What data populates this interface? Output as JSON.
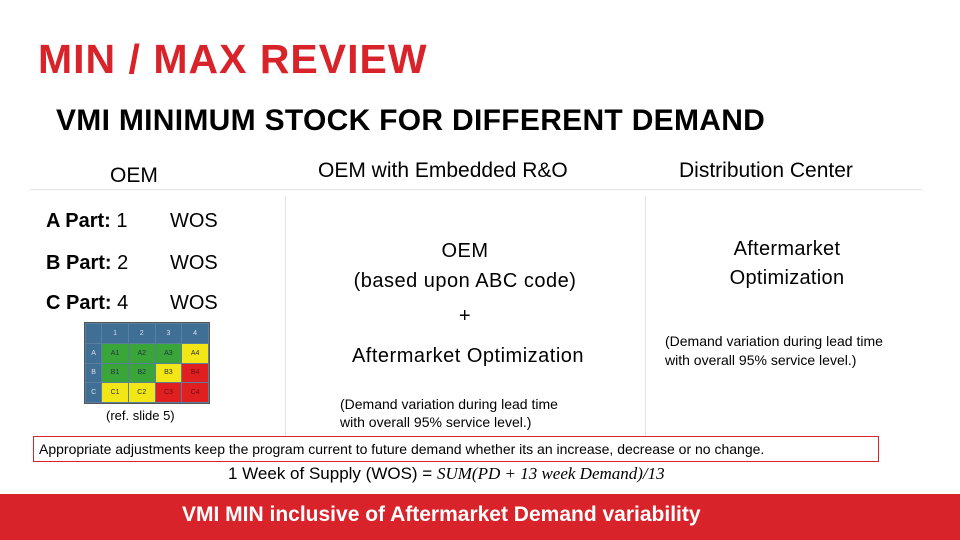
{
  "title": "MIN / MAX REVIEW",
  "subtitle": "VMI MINIMUM STOCK FOR DIFFERENT DEMAND",
  "columns": {
    "oem": "OEM",
    "oem_embedded": "OEM with Embedded R&O",
    "distribution": "Distribution Center"
  },
  "oem_parts": [
    {
      "label": "A Part:",
      "value": "1",
      "unit": "WOS"
    },
    {
      "label": "B Part:",
      "value": "2",
      "unit": "WOS"
    },
    {
      "label": "C Part:",
      "value": "4",
      "unit": "WOS"
    }
  ],
  "abc_grid": {
    "col_headers": [
      "1",
      "2",
      "3",
      "4"
    ],
    "rows": [
      {
        "head": "A",
        "cells": [
          "A1",
          "A2",
          "A3",
          "A4"
        ]
      },
      {
        "head": "B",
        "cells": [
          "B1",
          "B2",
          "B3",
          "B4"
        ]
      },
      {
        "head": "C",
        "cells": [
          "C1",
          "C2",
          "C3",
          "C4"
        ]
      }
    ],
    "ref": "(ref. slide 5)"
  },
  "embedded": {
    "line1": "OEM",
    "line2": "(based upon ABC code)",
    "plus": "+",
    "line3": "Aftermarket Optimization",
    "note1": "(Demand variation during lead time",
    "note2": "with overall 95% service level.)"
  },
  "distribution": {
    "line1": "Aftermarket",
    "line2": "Optimization",
    "note1": "(Demand variation during lead time",
    "note2": "with overall 95% service level.)"
  },
  "note_box": "Appropriate adjustments keep the program current to future demand whether its an increase, decrease or no change.",
  "formula": {
    "lhs": "1 Week of Supply (WOS) =",
    "rhs": "SUM(PD + 13 week Demand)/13"
  },
  "banner": "VMI MIN inclusive of Aftermarket Demand variability",
  "colors": {
    "accent": "#d8232a",
    "grid_blue": "#3f6f95",
    "green": "#3aa63a",
    "yellow": "#f2e616",
    "red": "#e02020"
  }
}
